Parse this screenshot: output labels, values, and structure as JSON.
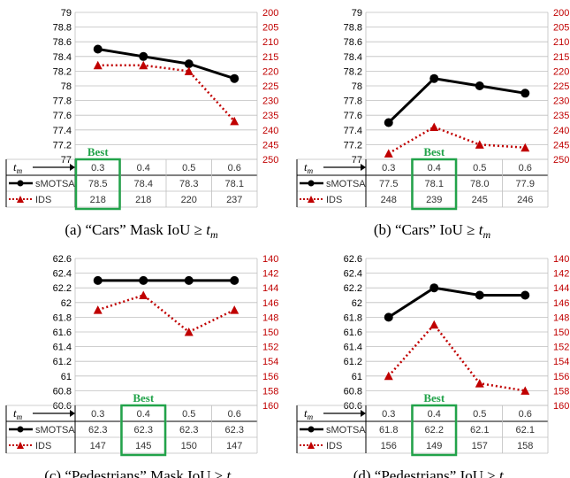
{
  "chart_data": [
    {
      "type": "line",
      "caption": "(a) “Cars” Mask IoU ≥ t_m",
      "caption_text": "(a) “Cars” Mask IoU ≥ ",
      "tm_label": "t",
      "tm_sub": "m",
      "categories": [
        "0.3",
        "0.4",
        "0.5",
        "0.6"
      ],
      "row_labels": [
        "sMOTSA",
        "IDS"
      ],
      "best": "Best",
      "best_index": 0,
      "left_ticks": [
        "79",
        "78.8",
        "78.6",
        "78.4",
        "78.2",
        "78",
        "77.8",
        "77.6",
        "77.4",
        "77.2",
        "77"
      ],
      "right_ticks": [
        "200",
        "205",
        "210",
        "215",
        "220",
        "225",
        "230",
        "235",
        "240",
        "245",
        "250"
      ],
      "ylim_left": [
        77,
        79
      ],
      "ylim_right": [
        200,
        250
      ],
      "series": [
        {
          "name": "sMOTSA",
          "values": [
            78.5,
            78.4,
            78.3,
            78.1
          ],
          "labels": [
            "78.5",
            "78.4",
            "78.3",
            "78.1"
          ]
        },
        {
          "name": "IDS",
          "values": [
            218,
            218,
            220,
            237
          ],
          "labels": [
            "218",
            "218",
            "220",
            "237"
          ]
        }
      ]
    },
    {
      "type": "line",
      "caption": "(b) “Cars” IoU ≥ t_m",
      "caption_text": "(b) “Cars” IoU ≥ ",
      "tm_label": "t",
      "tm_sub": "m",
      "categories": [
        "0.3",
        "0.4",
        "0.5",
        "0.6"
      ],
      "row_labels": [
        "sMOTSA",
        "IDS"
      ],
      "best": "Best",
      "best_index": 1,
      "left_ticks": [
        "79",
        "78.8",
        "78.6",
        "78.4",
        "78.2",
        "78",
        "77.8",
        "77.6",
        "77.4",
        "77.2",
        "77"
      ],
      "right_ticks": [
        "200",
        "205",
        "210",
        "215",
        "220",
        "225",
        "230",
        "235",
        "240",
        "245",
        "250"
      ],
      "ylim_left": [
        77,
        79
      ],
      "ylim_right": [
        200,
        250
      ],
      "series": [
        {
          "name": "sMOTSA",
          "values": [
            77.5,
            78.1,
            78.0,
            77.9
          ],
          "labels": [
            "77.5",
            "78.1",
            "78.0",
            "77.9"
          ]
        },
        {
          "name": "IDS",
          "values": [
            248,
            239,
            245,
            246
          ],
          "labels": [
            "248",
            "239",
            "245",
            "246"
          ]
        }
      ]
    },
    {
      "type": "line",
      "caption": "(c) “Pedestrians” Mask IoU ≥ t_m",
      "caption_text": "(c) “Pedestrians” Mask IoU ≥ ",
      "tm_label": "t",
      "tm_sub": "m",
      "categories": [
        "0.3",
        "0.4",
        "0.5",
        "0.6"
      ],
      "row_labels": [
        "sMOTSA",
        "IDS"
      ],
      "best": "Best",
      "best_index": 1,
      "left_ticks": [
        "62.6",
        "62.4",
        "62.2",
        "62",
        "61.8",
        "61.6",
        "61.4",
        "61.2",
        "61",
        "60.8",
        "60.6"
      ],
      "right_ticks": [
        "140",
        "142",
        "144",
        "146",
        "148",
        "150",
        "152",
        "154",
        "156",
        "158",
        "160"
      ],
      "ylim_left": [
        60.6,
        62.6
      ],
      "ylim_right": [
        140,
        160
      ],
      "series": [
        {
          "name": "sMOTSA",
          "values": [
            62.3,
            62.3,
            62.3,
            62.3
          ],
          "labels": [
            "62.3",
            "62.3",
            "62.3",
            "62.3"
          ]
        },
        {
          "name": "IDS",
          "values": [
            147,
            145,
            150,
            147
          ],
          "labels": [
            "147",
            "145",
            "150",
            "147"
          ]
        }
      ]
    },
    {
      "type": "line",
      "caption": "(d) “Pedestrians” IoU ≥ t_m",
      "caption_text": "(d) “Pedestrians” IoU ≥ ",
      "tm_label": "t",
      "tm_sub": "m",
      "categories": [
        "0.3",
        "0.4",
        "0.5",
        "0.6"
      ],
      "row_labels": [
        "sMOTSA",
        "IDS"
      ],
      "best": "Best",
      "best_index": 1,
      "left_ticks": [
        "62.6",
        "62.4",
        "62.2",
        "62",
        "61.8",
        "61.6",
        "61.4",
        "61.2",
        "61",
        "60.8",
        "60.6"
      ],
      "right_ticks": [
        "140",
        "142",
        "144",
        "146",
        "148",
        "150",
        "152",
        "154",
        "156",
        "158",
        "160"
      ],
      "ylim_left": [
        60.6,
        62.6
      ],
      "ylim_right": [
        140,
        160
      ],
      "series": [
        {
          "name": "sMOTSA",
          "values": [
            61.8,
            62.2,
            62.1,
            62.1
          ],
          "labels": [
            "61.8",
            "62.2",
            "62.1",
            "62.1"
          ]
        },
        {
          "name": "IDS",
          "values": [
            156,
            149,
            157,
            158
          ],
          "labels": [
            "156",
            "149",
            "157",
            "158"
          ]
        }
      ]
    }
  ],
  "colors": {
    "smotsa": "#000000",
    "ids": "#c00000",
    "best": "#22a34a",
    "grid": "#bfbfbf"
  }
}
